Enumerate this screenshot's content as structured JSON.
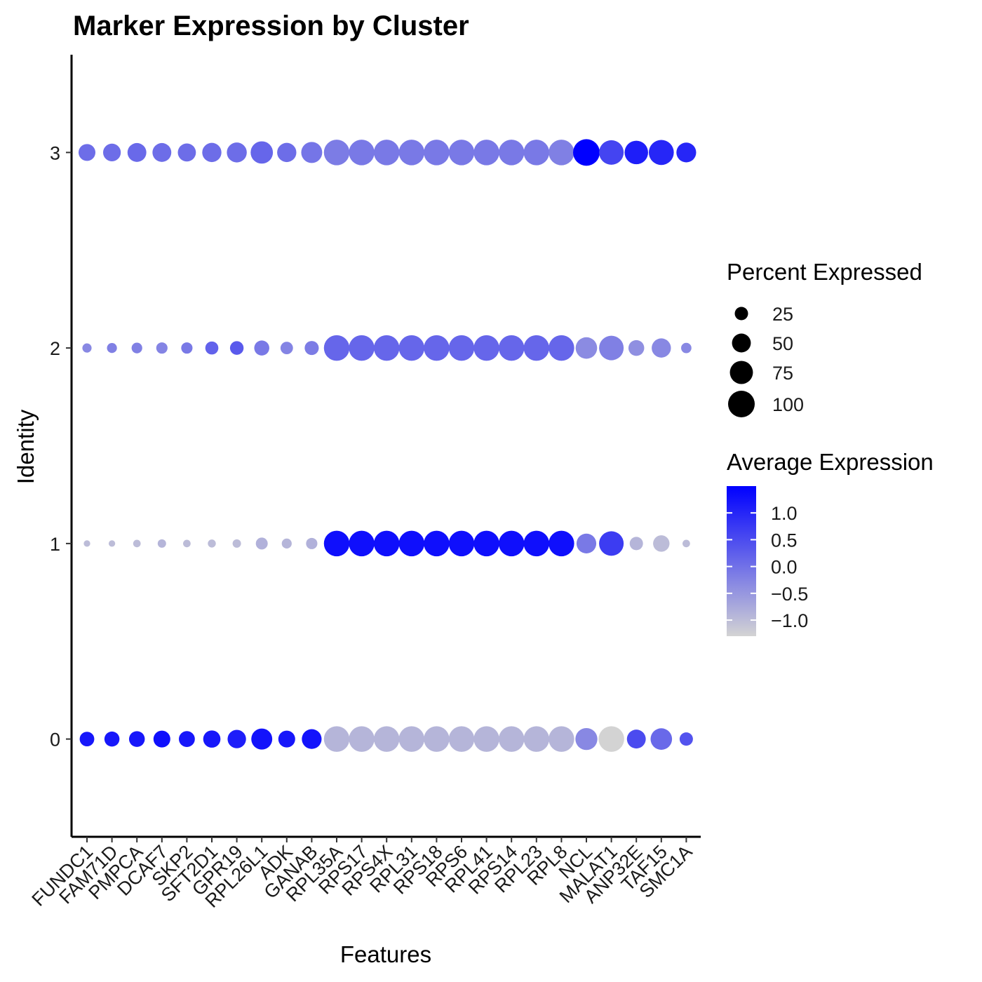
{
  "chart_data": {
    "type": "dotplot",
    "title": "Marker Expression by Cluster",
    "xlabel": "Features",
    "ylabel": "Identity",
    "features": [
      "FUNDC1",
      "FAM71D",
      "PMPCA",
      "DCAF7",
      "SKP2",
      "SFT2D1",
      "GPR19",
      "RPL26L1",
      "ADK",
      "GANAB",
      "RPL35A",
      "RPS17",
      "RPS4X",
      "RPL31",
      "RPS18",
      "RPS6",
      "RPL41",
      "RPS14",
      "RPL23",
      "RPL8",
      "NCL",
      "MALAT1",
      "ANP32E",
      "TAF15",
      "SMC1A"
    ],
    "identities": [
      "0",
      "1",
      "2",
      "3"
    ],
    "ylim": [
      -0.5,
      3.5
    ],
    "size_legend": {
      "title": "Percent Expressed",
      "breaks": [
        25,
        50,
        75,
        100
      ],
      "labels": [
        "25",
        "50",
        "75",
        "100"
      ]
    },
    "color_legend": {
      "title": "Average Expression",
      "low_color": "#d3d3d3",
      "high_color": "#0000ff",
      "range": [
        -1.3,
        1.5
      ],
      "breaks": [
        1.0,
        0.5,
        0.0,
        -0.5,
        -1.0
      ],
      "labels": [
        "1.0",
        "0.5",
        "0.0",
        "−0.5",
        "−1.0"
      ]
    },
    "points": {
      "0": {
        "pct": [
          30,
          32,
          35,
          40,
          36,
          42,
          48,
          62,
          40,
          55,
          92,
          92,
          92,
          92,
          92,
          92,
          92,
          92,
          92,
          92,
          68,
          92,
          50,
          65,
          25
        ],
        "avg": [
          1.2,
          1.2,
          1.2,
          1.3,
          1.2,
          1.2,
          1.1,
          1.25,
          1.2,
          1.25,
          -0.9,
          -0.9,
          -0.9,
          -0.9,
          -0.9,
          -0.9,
          -0.9,
          -0.9,
          -0.9,
          -0.9,
          -0.3,
          -1.3,
          0.5,
          0.1,
          0.4
        ]
      },
      "1": {
        "pct": [
          6,
          6,
          8,
          10,
          8,
          9,
          10,
          20,
          14,
          18,
          92,
          92,
          92,
          92,
          92,
          92,
          92,
          92,
          92,
          92,
          55,
          85,
          25,
          38,
          8
        ],
        "avg": [
          -1.0,
          -1.0,
          -1.0,
          -0.9,
          -1.0,
          -1.0,
          -1.0,
          -0.85,
          -0.9,
          -0.85,
          1.3,
          1.3,
          1.3,
          1.3,
          1.3,
          1.3,
          1.3,
          1.3,
          1.3,
          1.3,
          -0.1,
          0.7,
          -0.9,
          -1.0,
          -1.0
        ]
      },
      "2": {
        "pct": [
          12,
          14,
          16,
          18,
          18,
          24,
          26,
          32,
          22,
          28,
          92,
          92,
          92,
          92,
          92,
          92,
          92,
          92,
          92,
          92,
          65,
          85,
          35,
          52,
          15
        ],
        "avg": [
          -0.3,
          -0.2,
          -0.2,
          -0.25,
          -0.1,
          0.2,
          0.3,
          -0.1,
          -0.25,
          -0.15,
          0.15,
          0.15,
          0.15,
          0.15,
          0.15,
          0.15,
          0.15,
          0.15,
          0.15,
          0.15,
          -0.35,
          -0.2,
          -0.4,
          -0.3,
          -0.3
        ]
      },
      "3": {
        "pct": [
          40,
          44,
          50,
          50,
          46,
          52,
          56,
          70,
          52,
          62,
          92,
          92,
          92,
          92,
          92,
          92,
          92,
          92,
          92,
          92,
          100,
          85,
          78,
          88,
          55
        ],
        "avg": [
          0.05,
          0.05,
          0.1,
          0.05,
          0.05,
          0.05,
          0.05,
          0.15,
          0.05,
          -0.05,
          -0.15,
          -0.1,
          -0.1,
          -0.1,
          -0.1,
          -0.1,
          -0.1,
          -0.1,
          -0.1,
          -0.2,
          1.5,
          0.6,
          1.1,
          1.0,
          1.0
        ]
      }
    }
  }
}
